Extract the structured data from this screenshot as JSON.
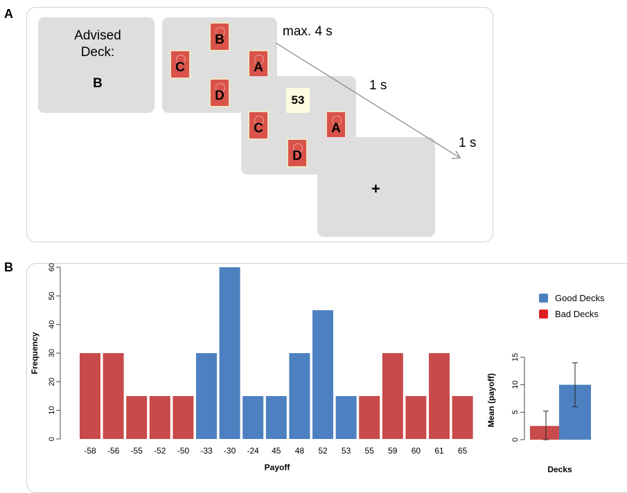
{
  "panels": {
    "a": "A",
    "b": "B"
  },
  "task": {
    "advised_title": "Advised",
    "advised_title2": "Deck:",
    "advised_deck": "B",
    "timings": [
      "max. 4 s",
      "1 s",
      "1 s"
    ],
    "decks": [
      "A",
      "B",
      "C",
      "D"
    ],
    "feedback_value": "53",
    "fixation": "+"
  },
  "colors": {
    "good": "#4d80c0",
    "bad": "#c84a4a",
    "screen": "#dedede",
    "card": "#d9534a"
  },
  "chart_data": [
    {
      "type": "bar",
      "categories": [
        "-58",
        "-56",
        "-55",
        "-52",
        "-50",
        "-33",
        "-30",
        "-24",
        "45",
        "48",
        "52",
        "53",
        "55",
        "59",
        "60",
        "61",
        "65"
      ],
      "values": [
        30,
        30,
        15,
        15,
        15,
        30,
        60,
        15,
        15,
        30,
        45,
        15,
        15,
        30,
        15,
        30,
        15
      ],
      "groups": [
        "bad",
        "bad",
        "bad",
        "bad",
        "bad",
        "good",
        "good",
        "good",
        "good",
        "good",
        "good",
        "good",
        "bad",
        "bad",
        "bad",
        "bad",
        "bad"
      ],
      "xlabel": "Payoff",
      "ylabel": "Frequency",
      "ylim": [
        0,
        60
      ],
      "yticks": [
        "0",
        "10",
        "20",
        "30",
        "40",
        "50",
        "60"
      ],
      "legend": [
        {
          "name": "Good Decks",
          "color": "#4d80c0"
        },
        {
          "name": "Bad Decks",
          "color": "#c84a4a"
        }
      ],
      "legend_position": "top-right",
      "grid": false
    },
    {
      "type": "bar",
      "categories": [
        "Bad Decks",
        "Good Decks"
      ],
      "values": [
        2.5,
        10
      ],
      "error_low": [
        0,
        6
      ],
      "error_high": [
        5.2,
        14
      ],
      "xlabel": "Decks",
      "ylabel": "Mean (payoff)",
      "ylim": [
        0,
        15
      ],
      "yticks": [
        "0",
        "5",
        "10",
        "15"
      ],
      "grid": false
    }
  ]
}
